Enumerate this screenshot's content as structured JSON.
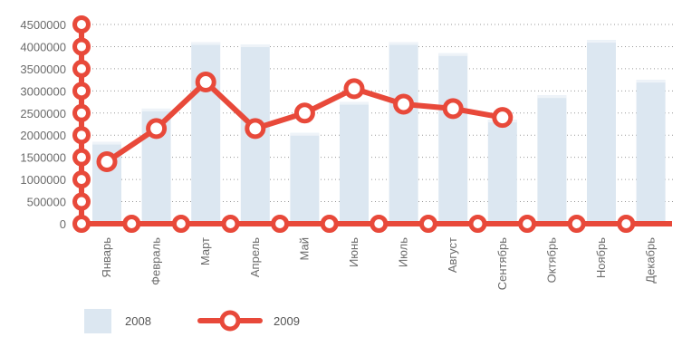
{
  "colors": {
    "bar": "#dce7f1",
    "bar_edge": "#eef3f8",
    "line": "#e8493a",
    "marker_fill": "#ffffff",
    "grid": "#9a9a9a",
    "text": "#6b6b6b"
  },
  "chart_data": {
    "type": "bar",
    "title": "",
    "xlabel": "",
    "ylabel": "",
    "ylim": [
      0,
      4500000
    ],
    "y_ticks": [
      "0",
      "500000",
      "1000000",
      "1500000",
      "2000000",
      "2500000",
      "3000000",
      "3500000",
      "4000000",
      "4500000"
    ],
    "categories": [
      "Январь",
      "Февраль",
      "Март",
      "Апрель",
      "Май",
      "Июнь",
      "Июль",
      "Август",
      "Сентябрь",
      "Октябрь",
      "Ноябрь",
      "Декабрь"
    ],
    "grid": "horizontal dotted",
    "legend_position": "bottom-left",
    "series": [
      {
        "name": "2008",
        "type": "bar",
        "values": [
          1850000,
          2600000,
          4100000,
          4050000,
          2050000,
          2750000,
          4100000,
          3850000,
          2350000,
          2900000,
          4150000,
          3250000
        ]
      },
      {
        "name": "2009",
        "type": "line",
        "values": [
          1400000,
          2150000,
          3200000,
          2150000,
          2500000,
          3050000,
          2700000,
          2600000,
          2400000,
          null,
          null,
          null
        ]
      }
    ]
  }
}
